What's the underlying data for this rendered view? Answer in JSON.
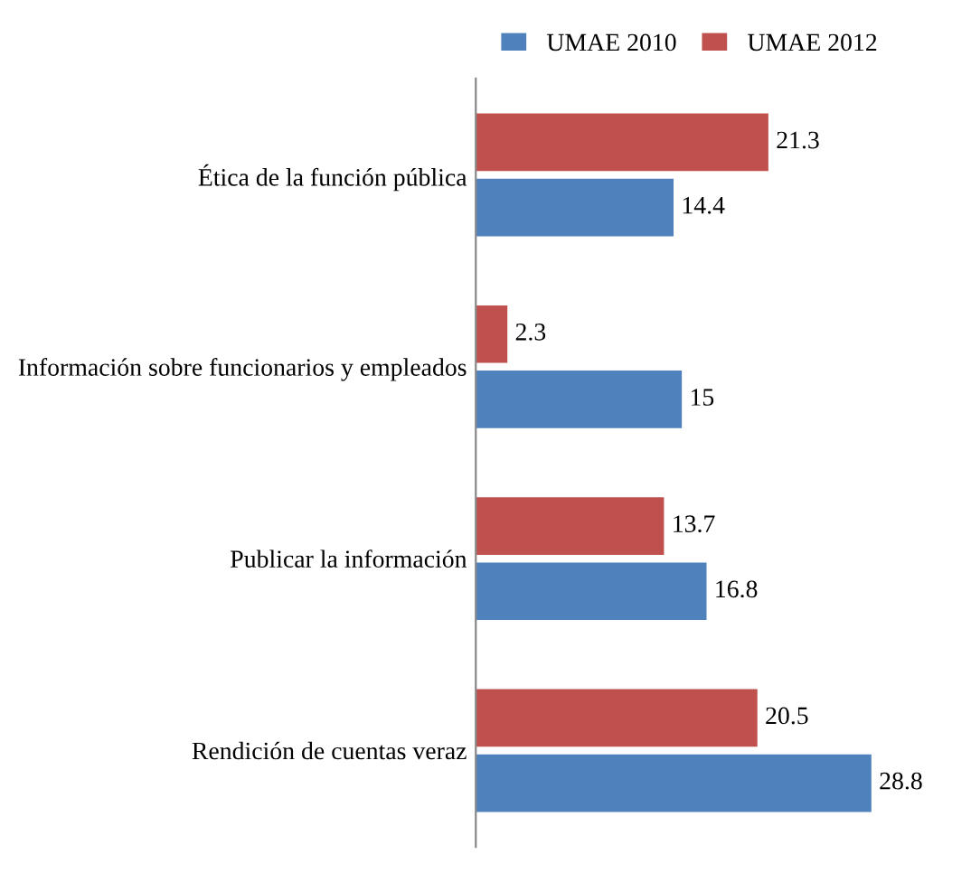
{
  "chart_data": {
    "type": "bar",
    "orientation": "horizontal",
    "categories": [
      "Ética de la función pública",
      "Información sobre funcionarios y empleados",
      "Publicar la información",
      "Rendición de cuentas veraz"
    ],
    "series": [
      {
        "name": "UMAE 2010",
        "color": "#4f81bd",
        "values": [
          14.4,
          15,
          16.8,
          28.8
        ]
      },
      {
        "name": "UMAE 2012",
        "color": "#c0504d",
        "values": [
          21.3,
          2.3,
          13.7,
          20.5
        ]
      }
    ],
    "data_labels": true,
    "legend": "top",
    "tick_labels": "y",
    "grid": false
  }
}
